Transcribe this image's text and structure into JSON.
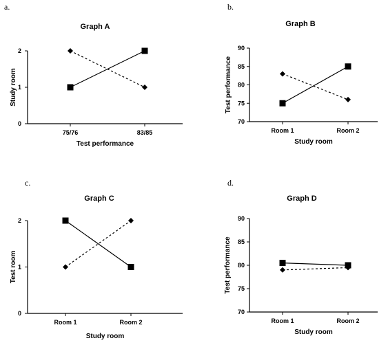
{
  "chart_data": [
    {
      "type": "line",
      "panel_label": "a.",
      "title": "Graph A",
      "xlabel": "Test performance",
      "ylabel": "Study room",
      "categories": [
        "75/76",
        "83/85"
      ],
      "ylim": [
        0,
        2
      ],
      "yticks": [
        0,
        1,
        2
      ],
      "grid": false,
      "series": [
        {
          "values": [
            1,
            2
          ],
          "marker": "square",
          "dash": "solid"
        },
        {
          "values": [
            2,
            1
          ],
          "marker": "diamond",
          "dash": "dotted"
        }
      ]
    },
    {
      "type": "line",
      "panel_label": "b.",
      "title": "Graph B",
      "xlabel": "Study room",
      "ylabel": "Test performance",
      "categories": [
        "Room 1",
        "Room 2"
      ],
      "ylim": [
        70,
        90
      ],
      "yticks": [
        70,
        75,
        80,
        85,
        90
      ],
      "grid": false,
      "series": [
        {
          "values": [
            75,
            85
          ],
          "marker": "square",
          "dash": "solid"
        },
        {
          "values": [
            83,
            76
          ],
          "marker": "diamond",
          "dash": "dotted"
        }
      ]
    },
    {
      "type": "line",
      "panel_label": "c.",
      "title": "Graph C",
      "xlabel": "Study room",
      "ylabel": "Test room",
      "categories": [
        "Room 1",
        "Room 2"
      ],
      "ylim": [
        0,
        2
      ],
      "yticks": [
        0,
        1,
        2
      ],
      "grid": false,
      "series": [
        {
          "values": [
            2,
            1
          ],
          "marker": "square",
          "dash": "solid"
        },
        {
          "values": [
            1,
            2
          ],
          "marker": "diamond",
          "dash": "dotted"
        }
      ]
    },
    {
      "type": "line",
      "panel_label": "d.",
      "title": "Graph D",
      "xlabel": "Study room",
      "ylabel": "Test performance",
      "categories": [
        "Room 1",
        "Room 2"
      ],
      "ylim": [
        70,
        90
      ],
      "yticks": [
        70,
        75,
        80,
        85,
        90
      ],
      "grid": false,
      "series": [
        {
          "values": [
            80.5,
            80
          ],
          "marker": "square",
          "dash": "solid"
        },
        {
          "values": [
            79,
            79.5
          ],
          "marker": "diamond",
          "dash": "dotted"
        }
      ]
    }
  ]
}
